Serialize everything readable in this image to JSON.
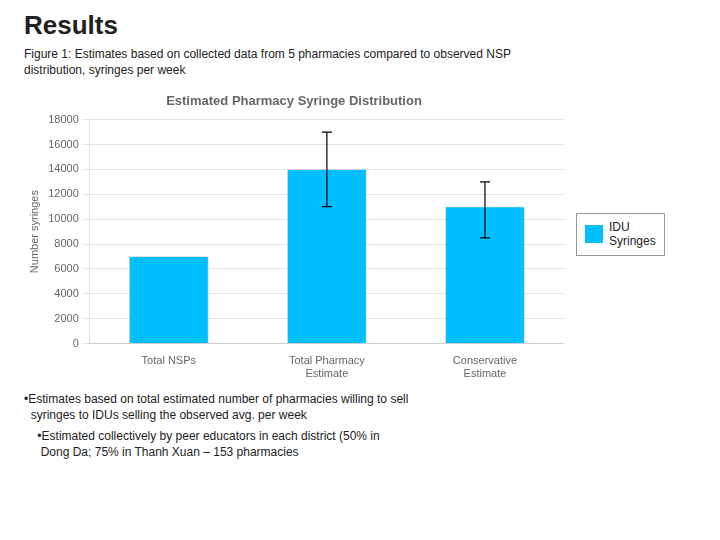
{
  "chart_data": {
    "type": "bar",
    "title": "Estimated Pharmacy Syringe Distribution",
    "annotations": [
      "Results",
      "Figure 1: Estimates based on collected data from 5 pharmacies compared to observed NSP\ndistribution, syringes per week",
      "•Estimates based on total estimated number of pharmacies willing to sell\n  syringes to IDUs selling the observed avg. per week",
      "    •Estimated collectively by peer educators in each district (50% in\n     Dong Da; 75% in Thanh Xuan – 153 pharmacies"
    ],
    "categories": [
      "Total NSPs",
      "Total Pharmacy\nEstimate",
      "Conservative\nEstimate"
    ],
    "series": [
      {
        "name": "IDU\nSyringes",
        "color": "#00BFFF",
        "values": [
          7000,
          14000,
          11000
        ],
        "errors_upper": [
          0,
          3000,
          2000
        ],
        "errors_lower": [
          0,
          3000,
          2500
        ]
      }
    ],
    "ylabel": "Number syringes",
    "ylim": [
      0,
      18000
    ],
    "yticks": [
      0,
      2000,
      4000,
      6000,
      8000,
      10000,
      12000,
      14000,
      16000,
      18000
    ],
    "grid": true,
    "legend": "right"
  }
}
